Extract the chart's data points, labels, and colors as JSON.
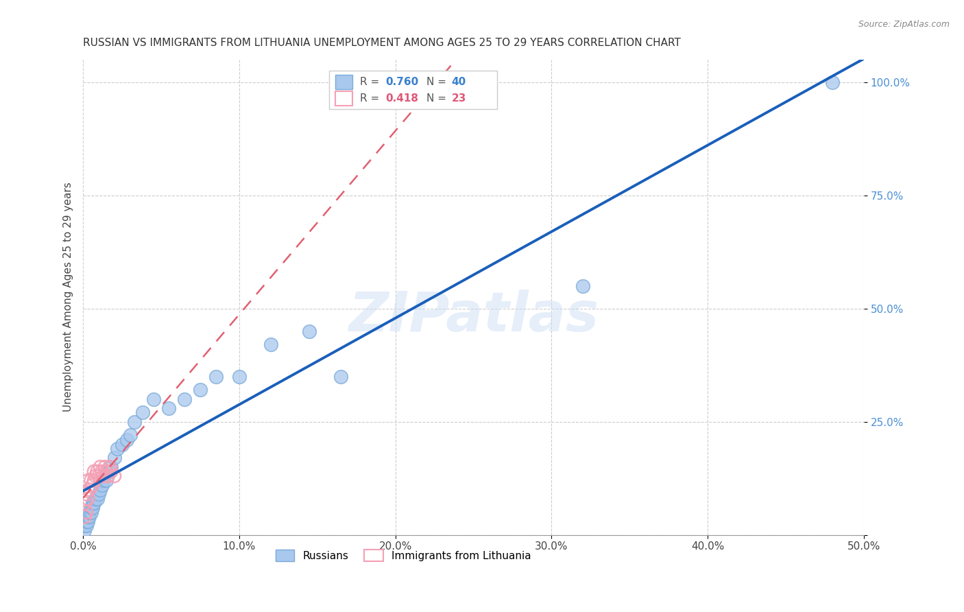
{
  "title": "RUSSIAN VS IMMIGRANTS FROM LITHUANIA UNEMPLOYMENT AMONG AGES 25 TO 29 YEARS CORRELATION CHART",
  "source": "Source: ZipAtlas.com",
  "ylabel": "Unemployment Among Ages 25 to 29 years",
  "xlim": [
    0.0,
    0.5
  ],
  "ylim": [
    0.0,
    1.05
  ],
  "xticks": [
    0.0,
    0.1,
    0.2,
    0.3,
    0.4,
    0.5
  ],
  "xtick_labels": [
    "0.0%",
    "10.0%",
    "20.0%",
    "30.0%",
    "40.0%",
    "50.0%"
  ],
  "ytick_positions": [
    0.0,
    0.25,
    0.5,
    0.75,
    1.0
  ],
  "ytick_labels": [
    "",
    "25.0%",
    "50.0%",
    "75.0%",
    "100.0%"
  ],
  "r_russian": "0.760",
  "n_russian": "40",
  "r_lithuania": "0.418",
  "n_lithuania": "23",
  "russian_color": "#a8c8ee",
  "russia_edge_color": "#7aaad8",
  "lithuania_color": "#f4a0b5",
  "trendline_russian_color": "#1a5fba",
  "trendline_lithuania_color": "#e06070",
  "watermark": "ZIPatlas",
  "russians_x": [
    0.001,
    0.001,
    0.002,
    0.002,
    0.003,
    0.003,
    0.004,
    0.004,
    0.005,
    0.005,
    0.006,
    0.006,
    0.007,
    0.008,
    0.009,
    0.01,
    0.011,
    0.012,
    0.013,
    0.015,
    0.016,
    0.018,
    0.02,
    0.022,
    0.025,
    0.028,
    0.03,
    0.033,
    0.038,
    0.045,
    0.055,
    0.065,
    0.075,
    0.085,
    0.1,
    0.12,
    0.145,
    0.165,
    0.32,
    0.48
  ],
  "russians_y": [
    0.01,
    0.02,
    0.02,
    0.03,
    0.03,
    0.04,
    0.04,
    0.05,
    0.05,
    0.06,
    0.06,
    0.07,
    0.07,
    0.08,
    0.08,
    0.09,
    0.1,
    0.11,
    0.12,
    0.12,
    0.14,
    0.15,
    0.17,
    0.19,
    0.2,
    0.21,
    0.22,
    0.25,
    0.27,
    0.3,
    0.28,
    0.3,
    0.32,
    0.35,
    0.35,
    0.42,
    0.45,
    0.35,
    0.55,
    1.0
  ],
  "lithuania_x": [
    0.001,
    0.001,
    0.002,
    0.002,
    0.003,
    0.003,
    0.004,
    0.005,
    0.006,
    0.007,
    0.007,
    0.008,
    0.009,
    0.01,
    0.011,
    0.012,
    0.013,
    0.014,
    0.015,
    0.016,
    0.017,
    0.018,
    0.02
  ],
  "lithuania_y": [
    0.04,
    0.07,
    0.05,
    0.09,
    0.08,
    0.12,
    0.1,
    0.12,
    0.11,
    0.12,
    0.14,
    0.13,
    0.14,
    0.13,
    0.15,
    0.14,
    0.13,
    0.15,
    0.14,
    0.13,
    0.15,
    0.14,
    0.13
  ]
}
